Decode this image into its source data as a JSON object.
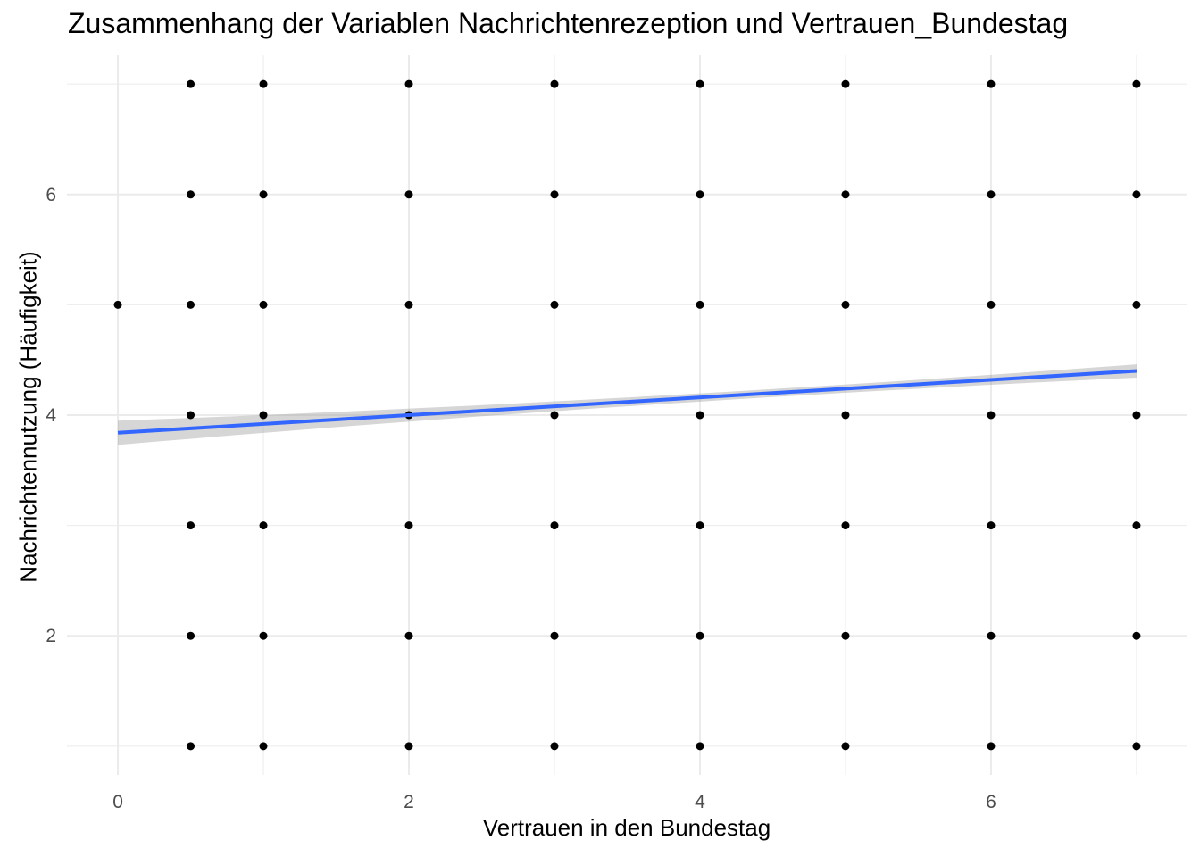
{
  "chart_data": {
    "type": "scatter",
    "title": "Zusammenhang der Variablen Nachrichtenrezeption und Vertrauen_Bundestag",
    "xlabel": "Vertrauen in den Bundestag",
    "ylabel": "Nachrichtennutzung (Häufigkeit)",
    "xlim": [
      -0.35,
      7.35
    ],
    "ylim": [
      0.74,
      7.26
    ],
    "x_ticks": [
      0,
      2,
      4,
      6
    ],
    "y_ticks": [
      2,
      4,
      6
    ],
    "grid": true,
    "legend": "none",
    "point_color": "#000000",
    "grid_color": "#ebebeb",
    "tick_label_color": "#4d4d4d",
    "trend": {
      "method": "linear regression with confidence band",
      "line_color": "#3366ff",
      "band_color": "#999999",
      "x_range": [
        0,
        7
      ],
      "y_start": 3.84,
      "y_end": 4.4,
      "band_halfwidth_start": 0.11,
      "band_halfwidth_middle": 0.04,
      "band_halfwidth_end": 0.06
    },
    "points": [
      {
        "x": 0,
        "y": 5
      },
      {
        "x": 0.5,
        "y": 7
      },
      {
        "x": 0.5,
        "y": 6
      },
      {
        "x": 0.5,
        "y": 5
      },
      {
        "x": 0.5,
        "y": 4
      },
      {
        "x": 0.5,
        "y": 3
      },
      {
        "x": 0.5,
        "y": 2
      },
      {
        "x": 0.5,
        "y": 1
      },
      {
        "x": 1,
        "y": 7
      },
      {
        "x": 1,
        "y": 6
      },
      {
        "x": 1,
        "y": 5
      },
      {
        "x": 1,
        "y": 4
      },
      {
        "x": 1,
        "y": 3
      },
      {
        "x": 1,
        "y": 2
      },
      {
        "x": 1,
        "y": 1
      },
      {
        "x": 2,
        "y": 7
      },
      {
        "x": 2,
        "y": 6
      },
      {
        "x": 2,
        "y": 5
      },
      {
        "x": 2,
        "y": 4
      },
      {
        "x": 2,
        "y": 3
      },
      {
        "x": 2,
        "y": 2
      },
      {
        "x": 2,
        "y": 1
      },
      {
        "x": 3,
        "y": 7
      },
      {
        "x": 3,
        "y": 6
      },
      {
        "x": 3,
        "y": 5
      },
      {
        "x": 3,
        "y": 4
      },
      {
        "x": 3,
        "y": 3
      },
      {
        "x": 3,
        "y": 2
      },
      {
        "x": 3,
        "y": 1
      },
      {
        "x": 4,
        "y": 7
      },
      {
        "x": 4,
        "y": 6
      },
      {
        "x": 4,
        "y": 5
      },
      {
        "x": 4,
        "y": 4
      },
      {
        "x": 4,
        "y": 3
      },
      {
        "x": 4,
        "y": 2
      },
      {
        "x": 4,
        "y": 1
      },
      {
        "x": 5,
        "y": 7
      },
      {
        "x": 5,
        "y": 6
      },
      {
        "x": 5,
        "y": 5
      },
      {
        "x": 5,
        "y": 4
      },
      {
        "x": 5,
        "y": 3
      },
      {
        "x": 5,
        "y": 2
      },
      {
        "x": 5,
        "y": 1
      },
      {
        "x": 6,
        "y": 7
      },
      {
        "x": 6,
        "y": 6
      },
      {
        "x": 6,
        "y": 5
      },
      {
        "x": 6,
        "y": 4
      },
      {
        "x": 6,
        "y": 3
      },
      {
        "x": 6,
        "y": 2
      },
      {
        "x": 6,
        "y": 1
      },
      {
        "x": 7,
        "y": 7
      },
      {
        "x": 7,
        "y": 6
      },
      {
        "x": 7,
        "y": 5
      },
      {
        "x": 7,
        "y": 4
      },
      {
        "x": 7,
        "y": 3
      },
      {
        "x": 7,
        "y": 2
      },
      {
        "x": 7,
        "y": 1
      }
    ]
  }
}
